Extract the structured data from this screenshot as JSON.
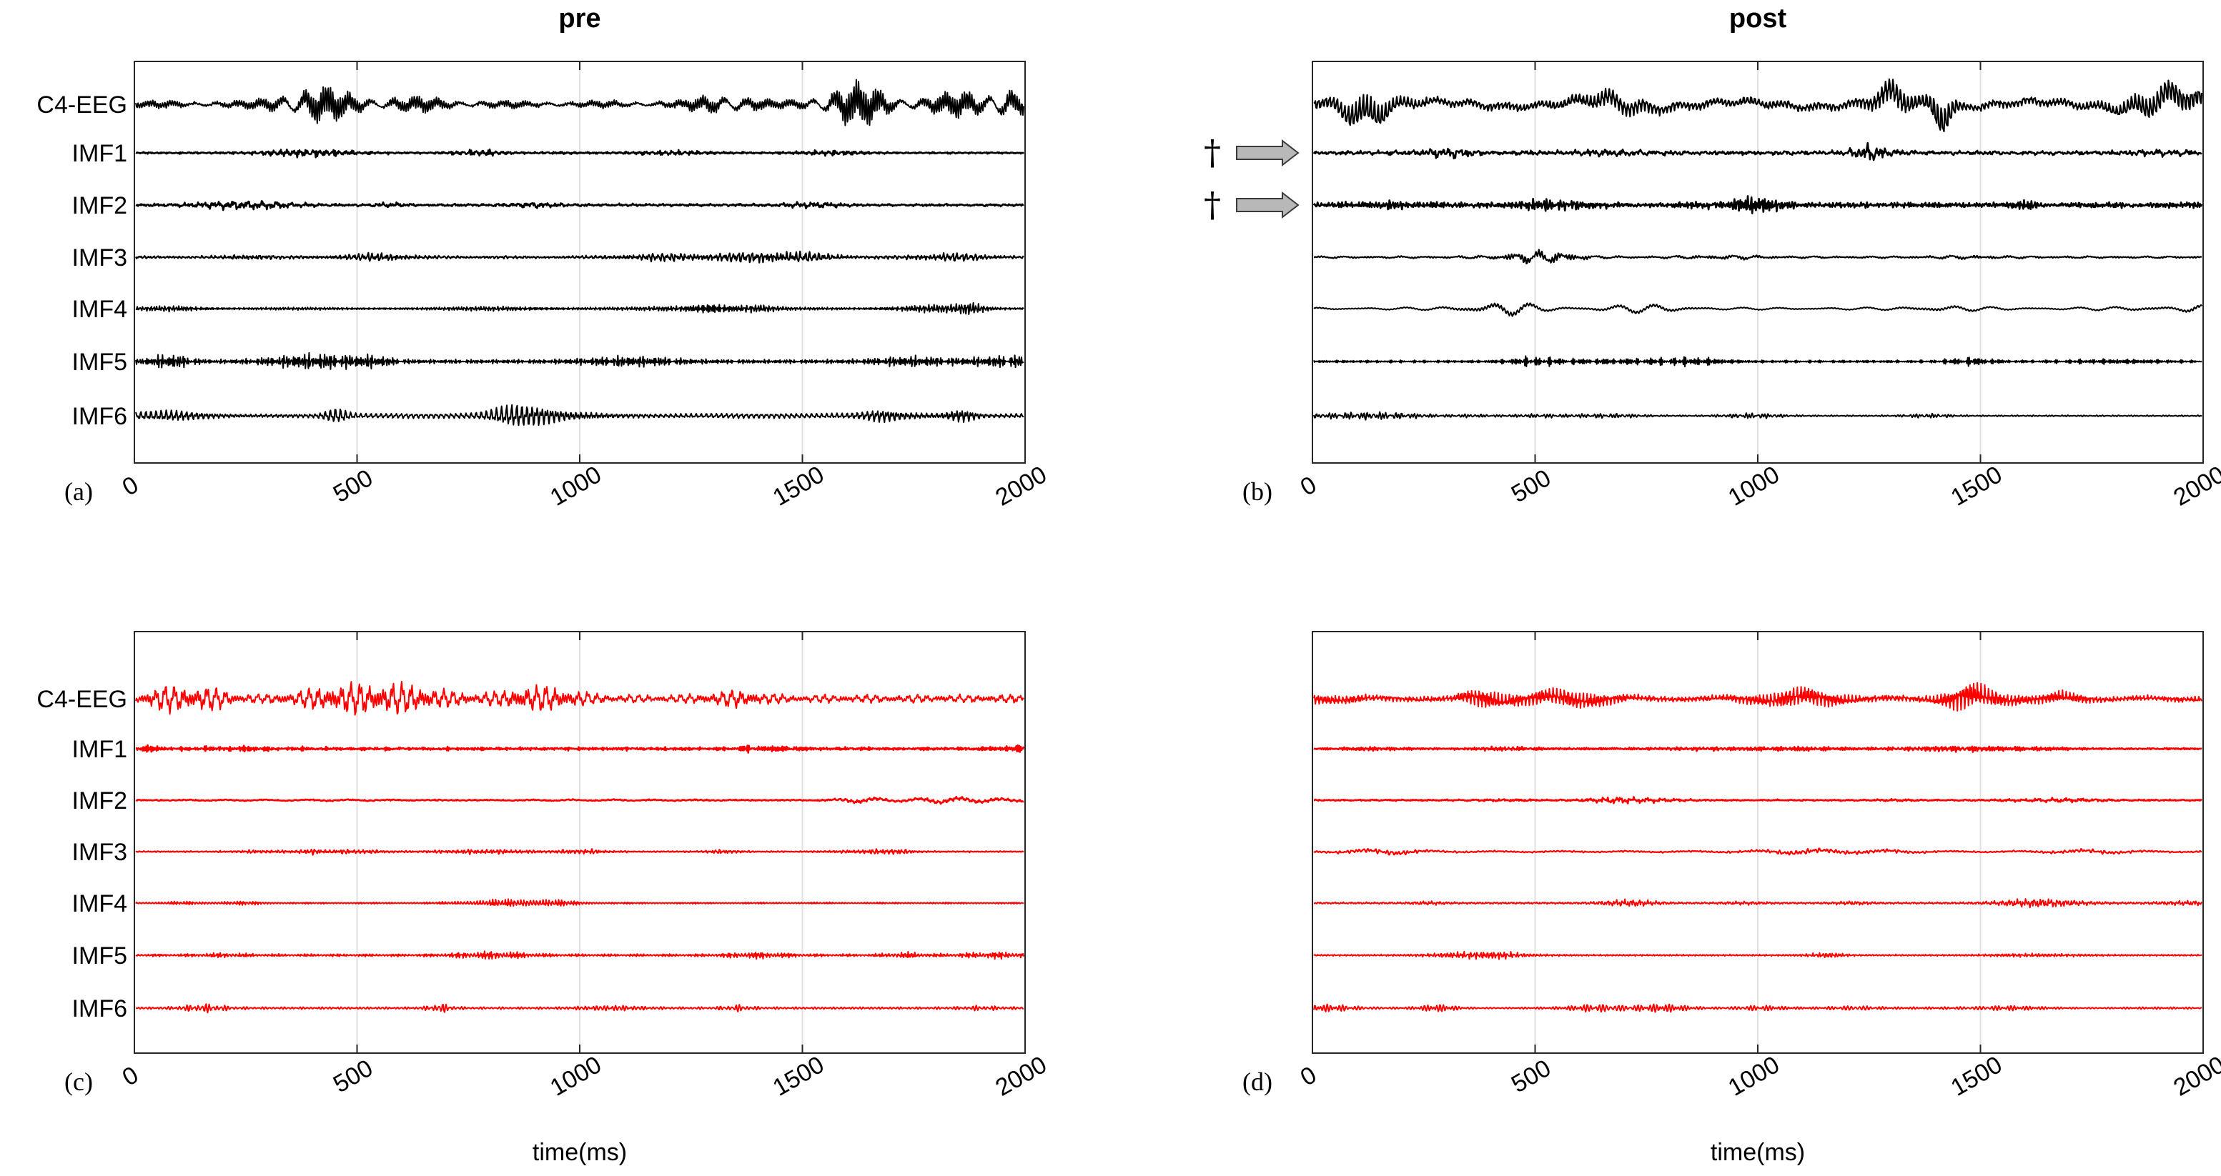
{
  "chart_data": [
    {
      "type": "line",
      "panel_label": "(a)",
      "title": "pre",
      "color": "#000000",
      "xlabel": "",
      "xlim": [
        0,
        2000
      ],
      "x_ticks": [
        0,
        500,
        1000,
        1500,
        2000
      ],
      "grid": true,
      "series": [
        {
          "name": "C4-EEG",
          "trace": "black-1",
          "amplitude": 1.0,
          "frequency": 0.9,
          "marker": ""
        },
        {
          "name": "IMF1",
          "trace": "black-2",
          "amplitude": 0.25,
          "frequency": 6.0,
          "marker": ""
        },
        {
          "name": "IMF2",
          "trace": "black-3",
          "amplitude": 0.28,
          "frequency": 3.0,
          "marker": ""
        },
        {
          "name": "IMF3",
          "trace": "black-4",
          "amplitude": 0.32,
          "frequency": 1.6,
          "marker": ""
        },
        {
          "name": "IMF4",
          "trace": "black-5",
          "amplitude": 0.32,
          "frequency": 0.8,
          "marker": ""
        },
        {
          "name": "IMF5",
          "trace": "black-6",
          "amplitude": 0.48,
          "frequency": 0.4,
          "marker": ""
        },
        {
          "name": "IMF6",
          "trace": "black-7",
          "amplitude": 0.6,
          "frequency": 0.2,
          "marker": ""
        }
      ]
    },
    {
      "type": "line",
      "panel_label": "(b)",
      "title": "post",
      "color": "#000000",
      "xlabel": "",
      "xlim": [
        0,
        2000
      ],
      "x_ticks": [
        0,
        500,
        1000,
        1500,
        2000
      ],
      "grid": true,
      "series": [
        {
          "name": "",
          "trace": "black-8",
          "amplitude": 1.1,
          "frequency": 1.5,
          "marker": ""
        },
        {
          "name": "",
          "trace": "black-9",
          "amplitude": 0.55,
          "frequency": 5.0,
          "marker": "†"
        },
        {
          "name": "",
          "trace": "black-10",
          "amplitude": 0.5,
          "frequency": 2.7,
          "marker": "†"
        },
        {
          "name": "",
          "trace": "black-11",
          "amplitude": 0.42,
          "frequency": 1.4,
          "marker": ""
        },
        {
          "name": "",
          "trace": "black-12",
          "amplitude": 0.42,
          "frequency": 0.75,
          "marker": ""
        },
        {
          "name": "",
          "trace": "black-13",
          "amplitude": 0.3,
          "frequency": 0.4,
          "marker": ""
        },
        {
          "name": "",
          "trace": "black-14",
          "amplitude": 0.22,
          "frequency": 0.2,
          "marker": ""
        }
      ]
    },
    {
      "type": "line",
      "panel_label": "(c)",
      "title": "",
      "color": "#ff0000",
      "xlabel": "time(ms)",
      "xlim": [
        0,
        2000
      ],
      "x_ticks": [
        0,
        500,
        1000,
        1500,
        2000
      ],
      "grid": true,
      "series": [
        {
          "name": "C4-EEG",
          "trace": "red-1",
          "amplitude": 0.7,
          "frequency": 0.9,
          "marker": ""
        },
        {
          "name": "IMF1",
          "trace": "red-2",
          "amplitude": 0.22,
          "frequency": 6.0,
          "marker": ""
        },
        {
          "name": "IMF2",
          "trace": "red-3",
          "amplitude": 0.2,
          "frequency": 3.0,
          "marker": ""
        },
        {
          "name": "IMF3",
          "trace": "red-4",
          "amplitude": 0.18,
          "frequency": 1.6,
          "marker": ""
        },
        {
          "name": "IMF4",
          "trace": "red-5",
          "amplitude": 0.22,
          "frequency": 0.8,
          "marker": ""
        },
        {
          "name": "IMF5",
          "trace": "red-6",
          "amplitude": 0.22,
          "frequency": 0.4,
          "marker": ""
        },
        {
          "name": "IMF6",
          "trace": "red-7",
          "amplitude": 0.25,
          "frequency": 0.2,
          "marker": ""
        }
      ]
    },
    {
      "type": "line",
      "panel_label": "(d)",
      "title": "",
      "color": "#ff0000",
      "xlabel": "time(ms)",
      "xlim": [
        0,
        2000
      ],
      "x_ticks": [
        0,
        500,
        1000,
        1500,
        2000
      ],
      "grid": true,
      "series": [
        {
          "name": "",
          "trace": "red-8",
          "amplitude": 0.65,
          "frequency": 0.9,
          "marker": ""
        },
        {
          "name": "",
          "trace": "red-9",
          "amplitude": 0.18,
          "frequency": 6.0,
          "marker": ""
        },
        {
          "name": "",
          "trace": "red-10",
          "amplitude": 0.18,
          "frequency": 3.0,
          "marker": ""
        },
        {
          "name": "",
          "trace": "red-11",
          "amplitude": 0.18,
          "frequency": 1.6,
          "marker": ""
        },
        {
          "name": "",
          "trace": "red-12",
          "amplitude": 0.25,
          "frequency": 0.8,
          "marker": ""
        },
        {
          "name": "",
          "trace": "red-13",
          "amplitude": 0.22,
          "frequency": 0.4,
          "marker": ""
        },
        {
          "name": "",
          "trace": "red-14",
          "amplitude": 0.22,
          "frequency": 0.2,
          "marker": ""
        }
      ]
    }
  ]
}
